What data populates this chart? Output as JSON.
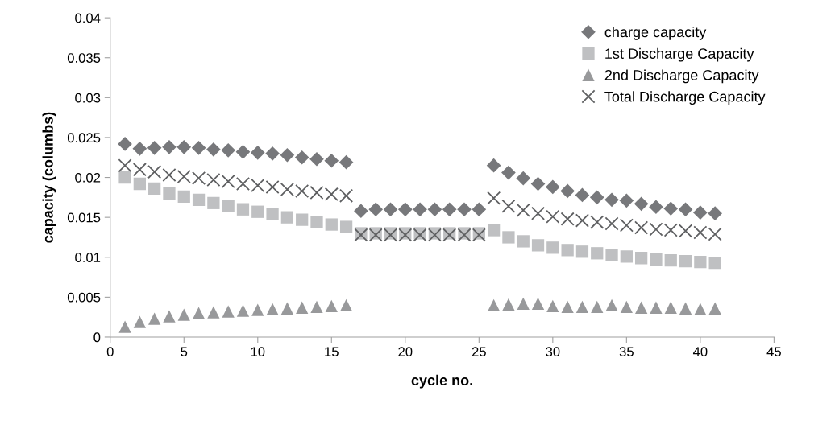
{
  "chart_data": {
    "type": "scatter",
    "xlabel": "cycle no.",
    "ylabel": "capacity (columbs)",
    "x": [
      1,
      2,
      3,
      4,
      5,
      6,
      7,
      8,
      9,
      10,
      11,
      12,
      13,
      14,
      15,
      16,
      17,
      18,
      19,
      20,
      21,
      22,
      23,
      24,
      25,
      26,
      27,
      28,
      29,
      30,
      31,
      32,
      33,
      34,
      35,
      36,
      37,
      38,
      39,
      40,
      41
    ],
    "series": [
      {
        "name": "charge capacity",
        "color": "#77787b",
        "marker": "diamond",
        "values": [
          0.0242,
          0.0236,
          0.0237,
          0.0238,
          0.0238,
          0.0237,
          0.0235,
          0.0234,
          0.0232,
          0.0231,
          0.023,
          0.0228,
          0.0225,
          0.0223,
          0.0221,
          0.0219,
          0.0158,
          0.016,
          0.016,
          0.016,
          0.016,
          0.016,
          0.016,
          0.016,
          0.016,
          0.0215,
          0.0206,
          0.0199,
          0.0192,
          0.0188,
          0.0183,
          0.0178,
          0.0175,
          0.0172,
          0.0171,
          0.0167,
          0.0163,
          0.0161,
          0.016,
          0.0156,
          0.0155
        ]
      },
      {
        "name": "1st Discharge Capacity",
        "color": "#bfc0c2",
        "marker": "square",
        "values": [
          0.02,
          0.0192,
          0.0186,
          0.018,
          0.0176,
          0.0172,
          0.0168,
          0.0164,
          0.016,
          0.0157,
          0.0154,
          0.015,
          0.0147,
          0.0144,
          0.0141,
          0.0138,
          0.013,
          0.013,
          0.013,
          0.013,
          0.013,
          0.013,
          0.013,
          0.013,
          0.013,
          0.0134,
          0.0125,
          0.012,
          0.0115,
          0.0112,
          0.0109,
          0.0107,
          0.0105,
          0.0103,
          0.0101,
          0.0099,
          0.0097,
          0.0096,
          0.0095,
          0.0094,
          0.0093
        ]
      },
      {
        "name": "2nd Discharge Capacity",
        "color": "#98999b",
        "marker": "triangle",
        "values": [
          0.0013,
          0.0019,
          0.0023,
          0.0026,
          0.0028,
          0.003,
          0.0031,
          0.0032,
          0.0033,
          0.0034,
          0.0035,
          0.0036,
          0.0037,
          0.0038,
          0.0039,
          0.004,
          null,
          null,
          null,
          null,
          null,
          null,
          null,
          null,
          null,
          0.004,
          0.0041,
          0.0042,
          0.0042,
          0.0039,
          0.0038,
          0.0038,
          0.0038,
          0.004,
          0.0038,
          0.0037,
          0.0037,
          0.0037,
          0.0036,
          0.0035,
          0.0036
        ]
      },
      {
        "name": "Total Discharge Capacity",
        "color": "#5f6062",
        "marker": "cross",
        "values": [
          0.0215,
          0.021,
          0.0207,
          0.0203,
          0.0201,
          0.0199,
          0.0197,
          0.0195,
          0.0192,
          0.019,
          0.0188,
          0.0185,
          0.0183,
          0.0181,
          0.0179,
          0.0177,
          0.0128,
          0.0128,
          0.0128,
          0.0128,
          0.0128,
          0.0128,
          0.0128,
          0.0128,
          0.0128,
          0.0174,
          0.0164,
          0.0159,
          0.0155,
          0.0151,
          0.0148,
          0.0146,
          0.0144,
          0.0142,
          0.014,
          0.0137,
          0.0135,
          0.0134,
          0.0133,
          0.0131,
          0.0129
        ]
      }
    ],
    "xlim": [
      0,
      45
    ],
    "xticks": [
      0,
      5,
      10,
      15,
      20,
      25,
      30,
      35,
      40,
      45
    ],
    "ylim": [
      0,
      0.04
    ],
    "yticks": [
      0,
      0.005,
      0.01,
      0.015,
      0.02,
      0.025,
      0.03,
      0.035,
      0.04
    ],
    "grid": false,
    "legend": "top right"
  }
}
